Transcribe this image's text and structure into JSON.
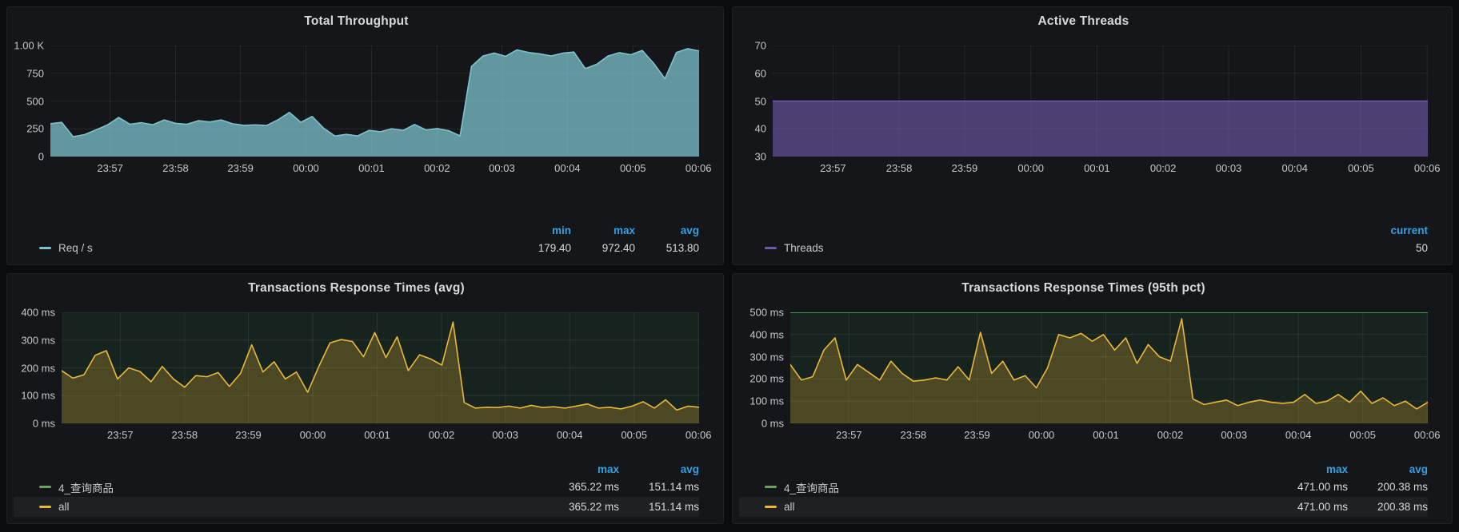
{
  "page": {
    "bg": "#0b0c0e",
    "panel_bg": "#141619",
    "panel_border": "#202226",
    "text": "#c7c8c9",
    "text_bright": "#d8d9da",
    "accent_blue": "#33a2e5",
    "grid_line": "rgba(255,255,255,0.08)"
  },
  "chart_data": [
    {
      "type": "area",
      "title": "Total Throughput",
      "x_ticks": [
        "23:57",
        "23:58",
        "23:59",
        "00:00",
        "00:01",
        "00:02",
        "00:03",
        "00:04",
        "00:05",
        "00:06"
      ],
      "y_range": [
        0,
        1000
      ],
      "y_ticks": [
        {
          "value": 0,
          "label": "0"
        },
        {
          "value": 250,
          "label": "250"
        },
        {
          "value": 500,
          "label": "500"
        },
        {
          "value": 750,
          "label": "750"
        },
        {
          "value": 1000,
          "label": "1.00 K"
        }
      ],
      "series": [
        {
          "name": "Req / s",
          "color": "#7dc3cd",
          "fill_opacity": 0.75,
          "stats": {
            "min": 179.4,
            "max": 972.4,
            "avg": 513.8
          },
          "values": [
            296,
            308,
            179,
            198,
            240,
            284,
            352,
            291,
            305,
            287,
            330,
            299,
            291,
            323,
            312,
            330,
            296,
            281,
            286,
            280,
            331,
            398,
            309,
            361,
            257,
            185,
            200,
            186,
            236,
            224,
            251,
            236,
            289,
            240,
            252,
            233,
            186,
            812,
            905,
            932,
            903,
            961,
            938,
            925,
            906,
            931,
            941,
            792,
            831,
            906,
            936,
            917,
            956,
            841,
            702,
            937,
            972,
            951
          ]
        }
      ]
    },
    {
      "type": "area",
      "title": "Active Threads",
      "x_ticks": [
        "23:57",
        "23:58",
        "23:59",
        "00:00",
        "00:01",
        "00:02",
        "00:03",
        "00:04",
        "00:05",
        "00:06"
      ],
      "y_range": [
        30,
        70
      ],
      "y_ticks": [
        {
          "value": 30,
          "label": "30"
        },
        {
          "value": 40,
          "label": "40"
        },
        {
          "value": 50,
          "label": "50"
        },
        {
          "value": 60,
          "label": "60"
        },
        {
          "value": 70,
          "label": "70"
        }
      ],
      "series": [
        {
          "name": "Threads",
          "color": "#7159ad",
          "fill_opacity": 0.62,
          "stats": {
            "current": 50
          },
          "values": [
            50,
            50
          ]
        }
      ]
    },
    {
      "type": "line",
      "title": "Transactions Response Times (avg)",
      "x_ticks": [
        "23:57",
        "23:58",
        "23:59",
        "00:00",
        "00:01",
        "00:02",
        "00:03",
        "00:04",
        "00:05",
        "00:06"
      ],
      "y_range": [
        0,
        400
      ],
      "y_ticks": [
        {
          "value": 0,
          "label": "0 ms"
        },
        {
          "value": 100,
          "label": "100 ms"
        },
        {
          "value": 200,
          "label": "200 ms"
        },
        {
          "value": 300,
          "label": "300 ms"
        },
        {
          "value": 400,
          "label": "400 ms"
        }
      ],
      "plot_tint": "rgba(62,155,74,0.10)",
      "series": [
        {
          "name": "4_查询商品",
          "color": "#6ea05f",
          "draw": false,
          "stats": {
            "max": 365.22,
            "avg": 151.14
          },
          "values": [
            190,
            163,
            175,
            245,
            262,
            160,
            200,
            187,
            150,
            205,
            160,
            130,
            172,
            168,
            183,
            133,
            180,
            283,
            185,
            222,
            160,
            185,
            112,
            205,
            290,
            302,
            295,
            240,
            327,
            237,
            312,
            190,
            247,
            232,
            210,
            365,
            75,
            55,
            58,
            57,
            62,
            55,
            65,
            57,
            60,
            55,
            62,
            70,
            55,
            58,
            52,
            62,
            78,
            55,
            85,
            48,
            62,
            58
          ]
        },
        {
          "name": "all",
          "color": "#eab839",
          "fill_opacity": 0.25,
          "stats": {
            "max": 365.22,
            "avg": 151.14
          },
          "values": [
            190,
            163,
            175,
            245,
            262,
            160,
            200,
            187,
            150,
            205,
            160,
            130,
            172,
            168,
            183,
            133,
            180,
            283,
            185,
            222,
            160,
            185,
            112,
            205,
            290,
            302,
            295,
            240,
            327,
            237,
            312,
            190,
            247,
            232,
            210,
            365,
            75,
            55,
            58,
            57,
            62,
            55,
            65,
            57,
            60,
            55,
            62,
            70,
            55,
            58,
            52,
            62,
            78,
            55,
            85,
            48,
            62,
            58
          ]
        }
      ]
    },
    {
      "type": "line",
      "title": "Transactions Response Times (95th pct)",
      "x_ticks": [
        "23:57",
        "23:58",
        "23:59",
        "00:00",
        "00:01",
        "00:02",
        "00:03",
        "00:04",
        "00:05",
        "00:06"
      ],
      "y_range": [
        0,
        500
      ],
      "y_ticks": [
        {
          "value": 0,
          "label": "0 ms"
        },
        {
          "value": 100,
          "label": "100 ms"
        },
        {
          "value": 200,
          "label": "200 ms"
        },
        {
          "value": 300,
          "label": "300 ms"
        },
        {
          "value": 400,
          "label": "400 ms"
        },
        {
          "value": 500,
          "label": "500 ms"
        }
      ],
      "plot_tint": "rgba(62,155,74,0.10)",
      "ref_line": {
        "value": 500,
        "color": "#3a9e4a"
      },
      "series": [
        {
          "name": "4_查询商品",
          "color": "#6ea05f",
          "draw": false,
          "stats": {
            "max": 471.0,
            "avg": 200.38
          },
          "values": [
            265,
            195,
            210,
            330,
            385,
            195,
            265,
            230,
            195,
            280,
            225,
            190,
            195,
            205,
            195,
            255,
            195,
            410,
            225,
            280,
            195,
            215,
            160,
            250,
            400,
            385,
            405,
            370,
            400,
            330,
            385,
            270,
            355,
            300,
            280,
            471,
            110,
            85,
            95,
            105,
            80,
            95,
            105,
            95,
            90,
            95,
            130,
            90,
            100,
            130,
            95,
            145,
            90,
            115,
            80,
            100,
            65,
            95
          ]
        },
        {
          "name": "all",
          "color": "#eab839",
          "fill_opacity": 0.25,
          "stats": {
            "max": 471.0,
            "avg": 200.38
          },
          "values": [
            265,
            195,
            210,
            330,
            385,
            195,
            265,
            230,
            195,
            280,
            225,
            190,
            195,
            205,
            195,
            255,
            195,
            410,
            225,
            280,
            195,
            215,
            160,
            250,
            400,
            385,
            405,
            370,
            400,
            330,
            385,
            270,
            355,
            300,
            280,
            471,
            110,
            85,
            95,
            105,
            80,
            95,
            105,
            95,
            90,
            95,
            130,
            90,
            100,
            130,
            95,
            145,
            90,
            115,
            80,
            100,
            65,
            95
          ]
        }
      ]
    }
  ],
  "panels": [
    {
      "stat_headers": [
        "min",
        "max",
        "avg"
      ],
      "legend": [
        {
          "label": "Req / s",
          "stats": [
            "179.40",
            "972.40",
            "513.80"
          ]
        }
      ]
    },
    {
      "stat_headers": [
        "current"
      ],
      "legend": [
        {
          "label": "Threads",
          "stats": [
            "50"
          ]
        }
      ]
    },
    {
      "stat_headers": [
        "max",
        "avg"
      ],
      "legend": [
        {
          "label": "4_查询商品",
          "stats": [
            "365.22 ms",
            "151.14 ms"
          ]
        },
        {
          "label": "all",
          "stats": [
            "365.22 ms",
            "151.14 ms"
          ]
        }
      ]
    },
    {
      "stat_headers": [
        "max",
        "avg"
      ],
      "legend": [
        {
          "label": "4_查询商品",
          "stats": [
            "471.00 ms",
            "200.38 ms"
          ]
        },
        {
          "label": "all",
          "stats": [
            "471.00 ms",
            "200.38 ms"
          ]
        }
      ]
    }
  ]
}
